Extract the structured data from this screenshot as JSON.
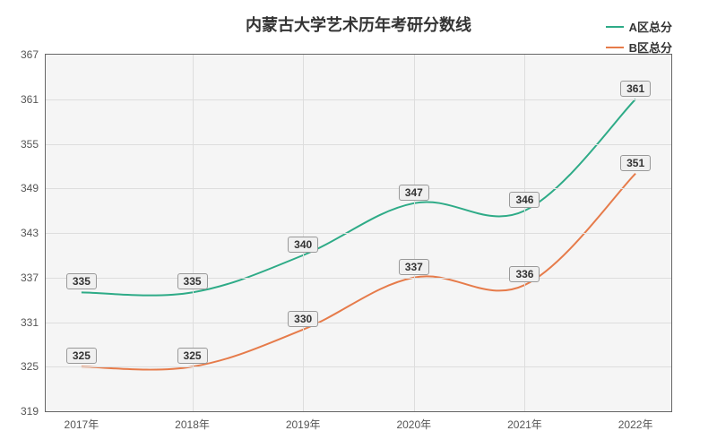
{
  "chart": {
    "type": "line",
    "title": "内蒙古大学艺术历年考研分数线",
    "title_fontsize": 18,
    "background_color": "#f5f5f5",
    "grid_color": "#dddddd",
    "border_color": "#666666",
    "categories": [
      "2017年",
      "2018年",
      "2019年",
      "2020年",
      "2021年",
      "2022年"
    ],
    "ylim": [
      319,
      367
    ],
    "ytick_step": 6,
    "yticks": [
      319,
      325,
      331,
      337,
      343,
      349,
      355,
      361,
      367
    ],
    "series": [
      {
        "name": "A区总分",
        "color": "#2eab87",
        "line_width": 2,
        "values": [
          335,
          335,
          340,
          347,
          346,
          361
        ],
        "label_offset": -12
      },
      {
        "name": "B区总分",
        "color": "#e67b4a",
        "line_width": 2,
        "values": [
          325,
          325,
          330,
          337,
          336,
          351
        ],
        "label_offset": -12
      }
    ],
    "label_fontsize": 12,
    "tick_fontsize": 12
  }
}
